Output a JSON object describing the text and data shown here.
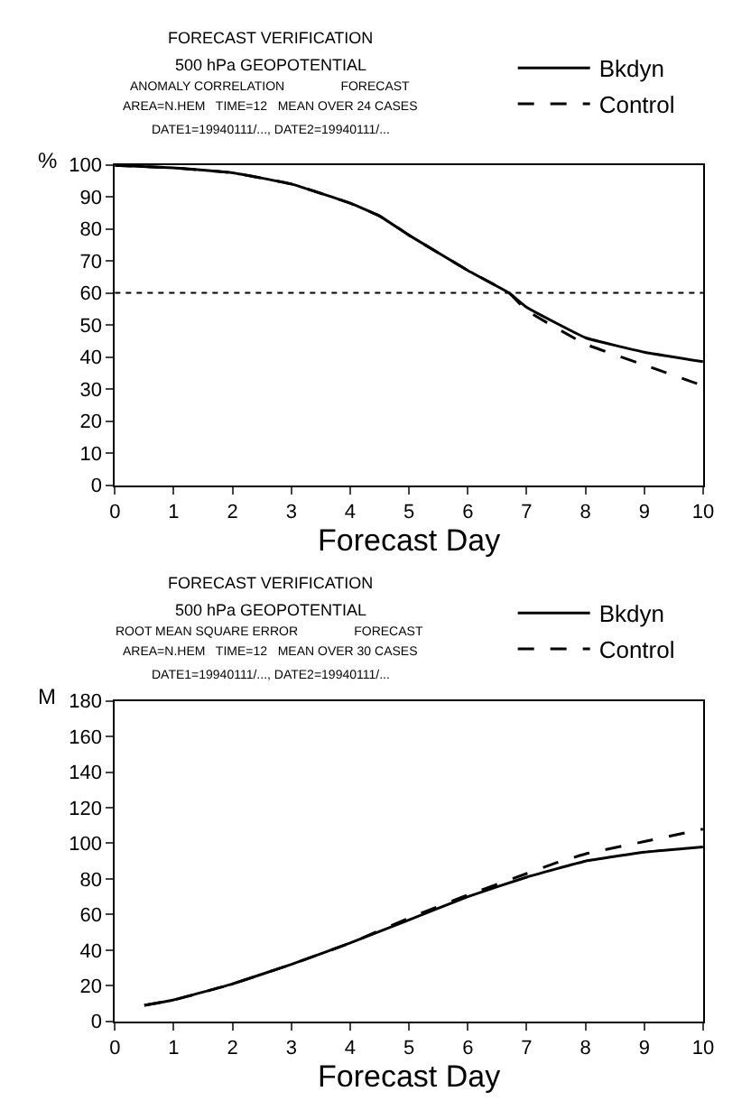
{
  "chart_data": [
    {
      "type": "line",
      "title": "FORECAST VERIFICATION",
      "subtitle": "500 hPa GEOPOTENTIAL",
      "annotations": [
        "ANOMALY CORRELATION                FORECAST",
        "AREA=N.HEM   TIME=12   MEAN OVER 24 CASES",
        "DATE1=19940111/..., DATE2=19940111/..."
      ],
      "xlabel": "Forecast Day",
      "ylabel": "%",
      "xlim": [
        0,
        10
      ],
      "xticks": [
        0,
        1,
        2,
        3,
        4,
        5,
        6,
        7,
        8,
        9,
        10
      ],
      "ylim": [
        0,
        100
      ],
      "yticks": [
        0,
        10,
        20,
        30,
        40,
        50,
        60,
        70,
        80,
        90,
        100
      ],
      "legend": "top right",
      "marker": "none",
      "ref_lines": [
        {
          "axis": "y",
          "value": 60,
          "color": "#000000",
          "line_style": "dotted"
        }
      ],
      "series": [
        {
          "name": "Bkdyn",
          "color": "#000000",
          "line_style": "solid",
          "x": [
            0,
            1,
            2,
            3,
            4,
            4.5,
            5,
            6,
            6.7,
            7,
            8,
            9,
            10
          ],
          "values": [
            99.8,
            99,
            97.5,
            94,
            88,
            84,
            78,
            67,
            60,
            55.5,
            46,
            41.5,
            38.5
          ]
        },
        {
          "name": "Control",
          "color": "#000000",
          "line_style": "dashed",
          "x": [
            0,
            1,
            2,
            3,
            4,
            4.5,
            5,
            6,
            6.7,
            7,
            8,
            9,
            10
          ],
          "values": [
            99.8,
            99,
            97.5,
            94,
            88,
            84,
            78,
            67,
            60,
            54.5,
            44,
            37.5,
            31
          ]
        }
      ]
    },
    {
      "type": "line",
      "title": "FORECAST VERIFICATION",
      "subtitle": "500 hPa GEOPOTENTIAL",
      "annotations": [
        "ROOT MEAN SQUARE ERROR                FORECAST",
        "AREA=N.HEM   TIME=12   MEAN OVER 30 CASES",
        "DATE1=19940111/..., DATE2=19940111/..."
      ],
      "xlabel": "Forecast Day",
      "ylabel": "M",
      "xlim": [
        0,
        10
      ],
      "xticks": [
        0,
        1,
        2,
        3,
        4,
        5,
        6,
        7,
        8,
        9,
        10
      ],
      "ylim": [
        0,
        180
      ],
      "yticks": [
        0,
        20,
        40,
        60,
        80,
        100,
        120,
        140,
        160,
        180
      ],
      "legend": "top right",
      "marker": "none",
      "series": [
        {
          "name": "Bkdyn",
          "color": "#000000",
          "line_style": "solid",
          "x": [
            0.5,
            1,
            2,
            3,
            4,
            5,
            6,
            7,
            8,
            9,
            10
          ],
          "values": [
            9,
            12,
            21,
            32,
            44,
            57,
            70,
            81,
            90,
            95,
            98
          ]
        },
        {
          "name": "Control",
          "color": "#000000",
          "line_style": "dashed",
          "x": [
            0.5,
            1,
            2,
            3,
            4,
            5,
            6,
            7,
            7.5,
            8,
            9,
            10
          ],
          "values": [
            9,
            12,
            21,
            32,
            44,
            58,
            71,
            83,
            89,
            94,
            101,
            108
          ]
        }
      ]
    }
  ]
}
